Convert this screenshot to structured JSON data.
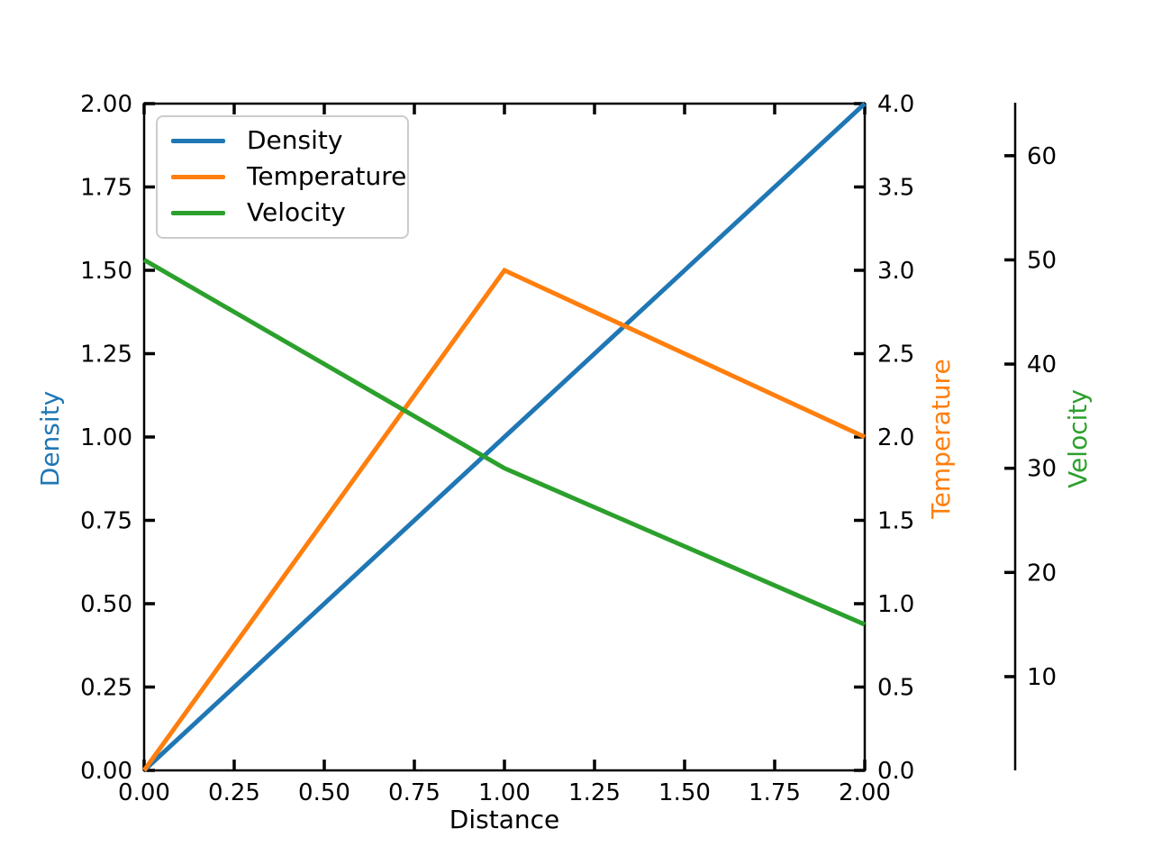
{
  "figure": {
    "background": "#ffffff",
    "text_color": "#000000",
    "spine_color": "#000000",
    "legend_border_color": "#cccccc"
  },
  "chart_data": {
    "type": "line",
    "title": "",
    "x": [
      0,
      1,
      2
    ],
    "series": [
      {
        "name": "Density",
        "axis": "density",
        "values": [
          0,
          1,
          2
        ],
        "color": "#1f77b4"
      },
      {
        "name": "Temperature",
        "axis": "temperature",
        "values": [
          0,
          3,
          2
        ],
        "color": "#ff7f0e"
      },
      {
        "name": "Velocity",
        "axis": "velocity",
        "values": [
          50,
          30,
          15
        ],
        "color": "#2ca02c"
      }
    ],
    "axes": {
      "x": {
        "label": "Distance",
        "lim": [
          0,
          2
        ],
        "tick_values": [
          0,
          0.25,
          0.5,
          0.75,
          1,
          1.25,
          1.5,
          1.75,
          2
        ],
        "tick_labels": [
          "0.00",
          "0.25",
          "0.50",
          "0.75",
          "1.00",
          "1.25",
          "1.50",
          "1.75",
          "2.00"
        ]
      },
      "density": {
        "label": "Density",
        "side": "left",
        "lim": [
          0,
          2
        ],
        "tick_values": [
          0,
          0.25,
          0.5,
          0.75,
          1,
          1.25,
          1.5,
          1.75,
          2
        ],
        "tick_labels": [
          "0.00",
          "0.25",
          "0.50",
          "0.75",
          "1.00",
          "1.25",
          "1.50",
          "1.75",
          "2.00"
        ]
      },
      "temperature": {
        "label": "Temperature",
        "side": "right",
        "lim": [
          0,
          4
        ],
        "tick_values": [
          0,
          0.5,
          1,
          1.5,
          2,
          2.5,
          3,
          3.5,
          4
        ],
        "tick_labels": [
          "0.0",
          "0.5",
          "1.0",
          "1.5",
          "2.0",
          "2.5",
          "3.0",
          "3.5",
          "4.0"
        ]
      },
      "velocity": {
        "label": "Velocity",
        "side": "right-offset",
        "lim": [
          1,
          65
        ],
        "tick_values": [
          10,
          20,
          30,
          40,
          50,
          60
        ],
        "tick_labels": [
          "10",
          "20",
          "30",
          "40",
          "50",
          "60"
        ]
      }
    },
    "legend": {
      "position": "upper-left",
      "entries": [
        "Density",
        "Temperature",
        "Velocity"
      ]
    },
    "grid": false
  }
}
